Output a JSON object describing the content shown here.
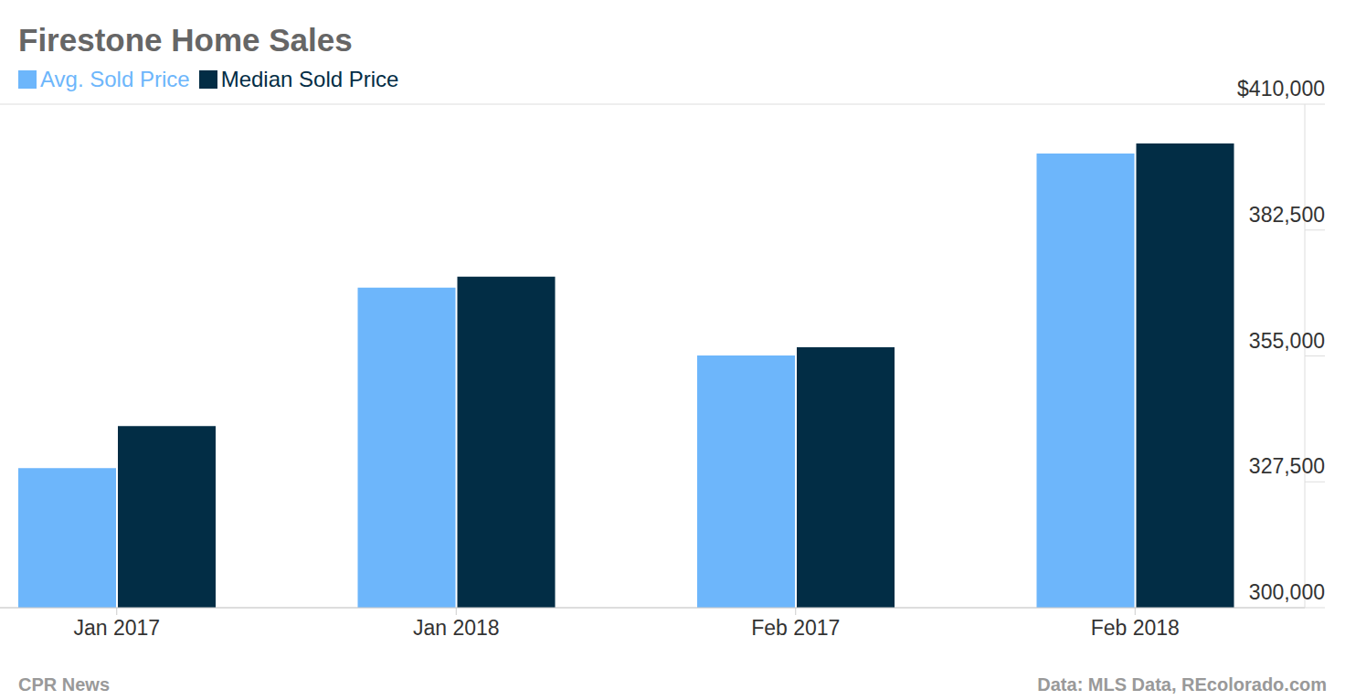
{
  "chart_data": {
    "type": "bar",
    "title": "Firestone Home Sales",
    "categories": [
      "Jan 2017",
      "Jan 2018",
      "Feb 2017",
      "Feb 2018"
    ],
    "series": [
      {
        "name": "Avg. Sold Price",
        "color": "#6db6fb",
        "values": [
          330500,
          369900,
          355100,
          399200
        ]
      },
      {
        "name": "Median Sold Price",
        "color": "#022d45",
        "values": [
          339700,
          372300,
          356900,
          401400
        ]
      }
    ],
    "ylim": [
      300000,
      410000
    ],
    "yticks": [
      {
        "value": 300000,
        "label": "300,000"
      },
      {
        "value": 327500,
        "label": "327,500"
      },
      {
        "value": 355000,
        "label": "355,000"
      },
      {
        "value": 382500,
        "label": "382,500"
      },
      {
        "value": 410000,
        "label": "$410,000"
      }
    ],
    "grid": true,
    "legend": "top-left",
    "annotations": [
      "CPR News",
      "Data: MLS Data, REcolorado.com"
    ]
  }
}
